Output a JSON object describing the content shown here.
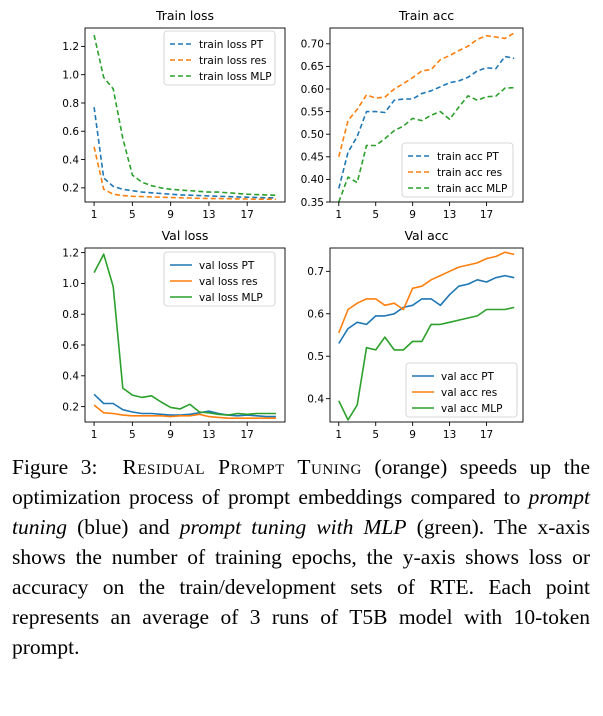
{
  "colors": {
    "pt": "#1f77b4",
    "res": "#ff7f0e",
    "mlp": "#2ca02c"
  },
  "chart_data": [
    {
      "type": "line",
      "title": "Train loss",
      "linestyle": "dashed",
      "legend_position": "top-right",
      "x": [
        1,
        2,
        3,
        4,
        5,
        6,
        7,
        8,
        9,
        10,
        11,
        12,
        13,
        14,
        15,
        16,
        17,
        18,
        19,
        20
      ],
      "xticks": [
        "1",
        "5",
        "9",
        "13",
        "17"
      ],
      "yticks": [
        "0.2",
        "0.4",
        "0.6",
        "0.8",
        "1.0",
        "1.2"
      ],
      "ylim": [
        0.1,
        1.33
      ],
      "series": [
        {
          "name": "train loss PT",
          "color": "pt",
          "values": [
            0.77,
            0.27,
            0.21,
            0.19,
            0.18,
            0.17,
            0.165,
            0.16,
            0.155,
            0.15,
            0.148,
            0.145,
            0.143,
            0.14,
            0.138,
            0.136,
            0.134,
            0.132,
            0.13,
            0.13
          ]
        },
        {
          "name": "train loss res",
          "color": "res",
          "values": [
            0.49,
            0.19,
            0.155,
            0.145,
            0.14,
            0.138,
            0.136,
            0.134,
            0.132,
            0.13,
            0.128,
            0.126,
            0.125,
            0.124,
            0.123,
            0.122,
            0.121,
            0.12,
            0.12,
            0.12
          ]
        },
        {
          "name": "train loss MLP",
          "color": "mlp",
          "values": [
            1.28,
            0.98,
            0.9,
            0.55,
            0.29,
            0.24,
            0.215,
            0.2,
            0.19,
            0.185,
            0.18,
            0.175,
            0.17,
            0.17,
            0.165,
            0.16,
            0.155,
            0.152,
            0.15,
            0.148
          ]
        }
      ]
    },
    {
      "type": "line",
      "title": "Train acc",
      "linestyle": "dashed",
      "legend_position": "bottom-right",
      "x": [
        1,
        2,
        3,
        4,
        5,
        6,
        7,
        8,
        9,
        10,
        11,
        12,
        13,
        14,
        15,
        16,
        17,
        18,
        19,
        20
      ],
      "xticks": [
        "1",
        "5",
        "9",
        "13",
        "17"
      ],
      "yticks": [
        "0.35",
        "0.40",
        "0.45",
        "0.50",
        "0.55",
        "0.60",
        "0.65",
        "0.70"
      ],
      "ylim": [
        0.35,
        0.735
      ],
      "series": [
        {
          "name": "train acc PT",
          "color": "pt",
          "values": [
            0.38,
            0.46,
            0.495,
            0.55,
            0.55,
            0.548,
            0.575,
            0.578,
            0.578,
            0.59,
            0.596,
            0.605,
            0.614,
            0.618,
            0.626,
            0.64,
            0.647,
            0.645,
            0.672,
            0.668
          ]
        },
        {
          "name": "train acc res",
          "color": "res",
          "values": [
            0.45,
            0.53,
            0.555,
            0.587,
            0.58,
            0.582,
            0.6,
            0.612,
            0.625,
            0.64,
            0.643,
            0.665,
            0.674,
            0.685,
            0.695,
            0.71,
            0.718,
            0.715,
            0.712,
            0.724
          ]
        },
        {
          "name": "train acc MLP",
          "color": "mlp",
          "values": [
            0.35,
            0.405,
            0.393,
            0.475,
            0.475,
            0.49,
            0.508,
            0.518,
            0.535,
            0.53,
            0.542,
            0.55,
            0.533,
            0.56,
            0.585,
            0.575,
            0.583,
            0.584,
            0.602,
            0.603
          ]
        }
      ]
    },
    {
      "type": "line",
      "title": "Val loss",
      "linestyle": "solid",
      "legend_position": "top-right",
      "x": [
        1,
        2,
        3,
        4,
        5,
        6,
        7,
        8,
        9,
        10,
        11,
        12,
        13,
        14,
        15,
        16,
        17,
        18,
        19,
        20
      ],
      "xticks": [
        "1",
        "5",
        "9",
        "13",
        "17"
      ],
      "yticks": [
        "0.2",
        "0.4",
        "0.6",
        "0.8",
        "1.0",
        "1.2"
      ],
      "ylim": [
        0.1,
        1.23
      ],
      "series": [
        {
          "name": "val loss PT",
          "color": "pt",
          "values": [
            0.28,
            0.22,
            0.22,
            0.18,
            0.165,
            0.155,
            0.155,
            0.15,
            0.145,
            0.145,
            0.15,
            0.16,
            0.17,
            0.155,
            0.145,
            0.14,
            0.145,
            0.14,
            0.135,
            0.135
          ]
        },
        {
          "name": "val loss res",
          "color": "res",
          "values": [
            0.21,
            0.16,
            0.155,
            0.145,
            0.14,
            0.14,
            0.14,
            0.14,
            0.135,
            0.14,
            0.14,
            0.15,
            0.135,
            0.13,
            0.125,
            0.125,
            0.125,
            0.125,
            0.125,
            0.125
          ]
        },
        {
          "name": "val loss MLP",
          "color": "mlp",
          "values": [
            1.07,
            1.19,
            0.98,
            0.32,
            0.275,
            0.26,
            0.27,
            0.23,
            0.195,
            0.185,
            0.215,
            0.165,
            0.16,
            0.15,
            0.145,
            0.155,
            0.15,
            0.155,
            0.155,
            0.155
          ]
        }
      ]
    },
    {
      "type": "line",
      "title": "Val acc",
      "linestyle": "solid",
      "legend_position": "bottom-right",
      "x": [
        1,
        2,
        3,
        4,
        5,
        6,
        7,
        8,
        9,
        10,
        11,
        12,
        13,
        14,
        15,
        16,
        17,
        18,
        19,
        20
      ],
      "xticks": [
        "1",
        "5",
        "9",
        "13",
        "17"
      ],
      "yticks": [
        "0.4",
        "0.5",
        "0.6",
        "0.7"
      ],
      "ylim": [
        0.345,
        0.755
      ],
      "series": [
        {
          "name": "val acc PT",
          "color": "pt",
          "values": [
            0.53,
            0.565,
            0.58,
            0.575,
            0.595,
            0.595,
            0.6,
            0.615,
            0.62,
            0.635,
            0.635,
            0.62,
            0.645,
            0.665,
            0.67,
            0.68,
            0.675,
            0.685,
            0.69,
            0.685
          ]
        },
        {
          "name": "val acc res",
          "color": "res",
          "values": [
            0.555,
            0.61,
            0.625,
            0.635,
            0.635,
            0.62,
            0.625,
            0.61,
            0.66,
            0.665,
            0.68,
            0.69,
            0.7,
            0.71,
            0.715,
            0.72,
            0.73,
            0.735,
            0.745,
            0.74
          ]
        },
        {
          "name": "val acc MLP",
          "color": "mlp",
          "values": [
            0.395,
            0.35,
            0.385,
            0.52,
            0.515,
            0.545,
            0.515,
            0.515,
            0.535,
            0.535,
            0.575,
            0.575,
            0.58,
            0.585,
            0.59,
            0.595,
            0.61,
            0.61,
            0.61,
            0.615
          ]
        }
      ]
    }
  ],
  "caption": {
    "label": "Figure 3:",
    "method": "Residual Prompt Tuning",
    "part1": " (orange) speeds up the optimization process of prompt embeddings compared to ",
    "pt_name": "prompt tuning",
    "part2": " (blue) and ",
    "mlp_name": "prompt tuning with MLP",
    "part3": " (green). The x-axis shows the number of training epochs, the y-axis shows loss or accuracy on the train/development sets of RTE. Each point represents an average of 3 runs of T5B model with 10-token prompt."
  }
}
